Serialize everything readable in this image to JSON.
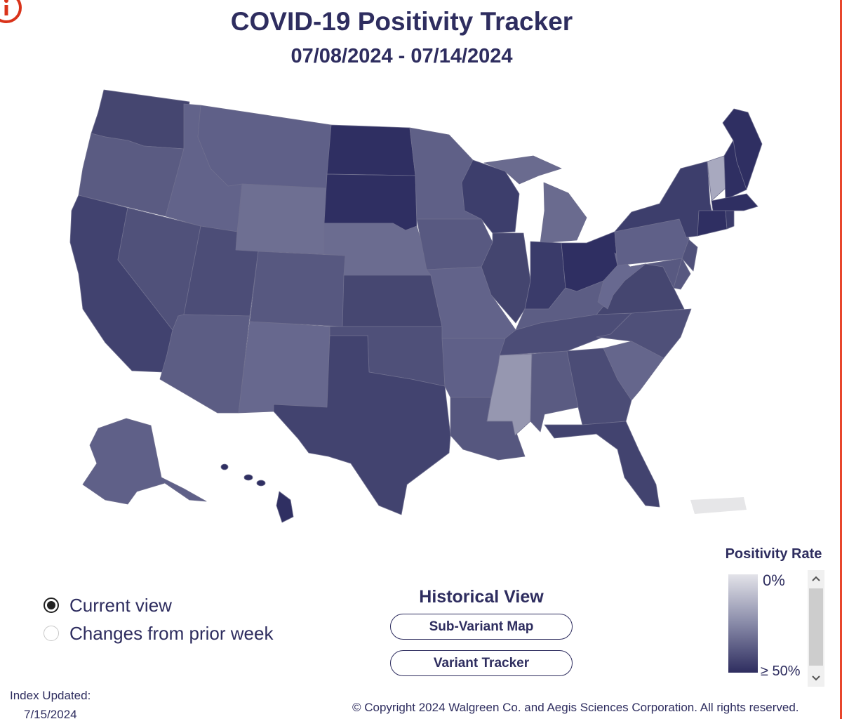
{
  "header": {
    "title": "COVID-19 Positivity Tracker",
    "date_range": "07/08/2024 - 07/14/2024",
    "info_icon": "info-icon"
  },
  "map": {
    "color_scale": {
      "low": "#e3e3e9",
      "high": "#2e2d5f"
    },
    "states": [
      {
        "code": "WA",
        "color": "#454670"
      },
      {
        "code": "OR",
        "color": "#5a5b82"
      },
      {
        "code": "CA",
        "color": "#41426f"
      },
      {
        "code": "NV",
        "color": "#50517a"
      },
      {
        "code": "ID",
        "color": "#62638a"
      },
      {
        "code": "MT",
        "color": "#5f6088"
      },
      {
        "code": "WY",
        "color": "#6e6f92"
      },
      {
        "code": "UT",
        "color": "#4c4d77"
      },
      {
        "code": "AZ",
        "color": "#5c5d84"
      },
      {
        "code": "CO",
        "color": "#575880"
      },
      {
        "code": "NM",
        "color": "#67688e"
      },
      {
        "code": "ND",
        "color": "#2f2f62"
      },
      {
        "code": "SD",
        "color": "#2f2f62"
      },
      {
        "code": "NE",
        "color": "#6b6c90"
      },
      {
        "code": "KS",
        "color": "#464771"
      },
      {
        "code": "OK",
        "color": "#4f5079"
      },
      {
        "code": "TX",
        "color": "#42436f"
      },
      {
        "code": "MN",
        "color": "#5f6087"
      },
      {
        "code": "IA",
        "color": "#585981"
      },
      {
        "code": "MO",
        "color": "#62638a"
      },
      {
        "code": "AR",
        "color": "#5f6088"
      },
      {
        "code": "LA",
        "color": "#56577f"
      },
      {
        "code": "WI",
        "color": "#3d3e6c"
      },
      {
        "code": "IL",
        "color": "#44456f"
      },
      {
        "code": "MI",
        "color": "#6a6b8f"
      },
      {
        "code": "IN",
        "color": "#3a3b6a"
      },
      {
        "code": "OH",
        "color": "#2f2f62"
      },
      {
        "code": "KY",
        "color": "#5c5d84"
      },
      {
        "code": "TN",
        "color": "#4c4d77"
      },
      {
        "code": "MS",
        "color": "#9697b0"
      },
      {
        "code": "AL",
        "color": "#5a5b82"
      },
      {
        "code": "GA",
        "color": "#4b4c76"
      },
      {
        "code": "FL",
        "color": "#42436f"
      },
      {
        "code": "SC",
        "color": "#65668c"
      },
      {
        "code": "NC",
        "color": "#4f5079"
      },
      {
        "code": "VA",
        "color": "#454670"
      },
      {
        "code": "WV",
        "color": "#686990"
      },
      {
        "code": "PA",
        "color": "#5f6088"
      },
      {
        "code": "NY",
        "color": "#3d3e6c"
      },
      {
        "code": "NJ",
        "color": "#50517a"
      },
      {
        "code": "DE",
        "color": "#575880"
      },
      {
        "code": "MD",
        "color": "#585981"
      },
      {
        "code": "VT",
        "color": "#a8a9bf"
      },
      {
        "code": "NH",
        "color": "#2f2f62"
      },
      {
        "code": "ME",
        "color": "#2f2f62"
      },
      {
        "code": "MA",
        "color": "#2f2f62"
      },
      {
        "code": "CT",
        "color": "#2f2f62"
      },
      {
        "code": "RI",
        "color": "#3a3b6a"
      },
      {
        "code": "AK",
        "color": "#5f6088"
      },
      {
        "code": "HI",
        "color": "#2f2f62"
      },
      {
        "code": "PR",
        "color": "#e6e6e8"
      }
    ]
  },
  "view_options": [
    {
      "label": "Current view",
      "selected": true
    },
    {
      "label": "Changes from prior week",
      "selected": false
    }
  ],
  "historical": {
    "title": "Historical View",
    "buttons": [
      "Sub-Variant Map",
      "Variant Tracker"
    ]
  },
  "legend": {
    "title": "Positivity Rate",
    "min_label": "0%",
    "max_label": "≥ 50%"
  },
  "footer": {
    "index_label": "Index Updated:",
    "index_date": "7/15/2024",
    "copyright": "© Copyright 2024 Walgreen Co. and Aegis Sciences Corporation. All rights reserved."
  }
}
